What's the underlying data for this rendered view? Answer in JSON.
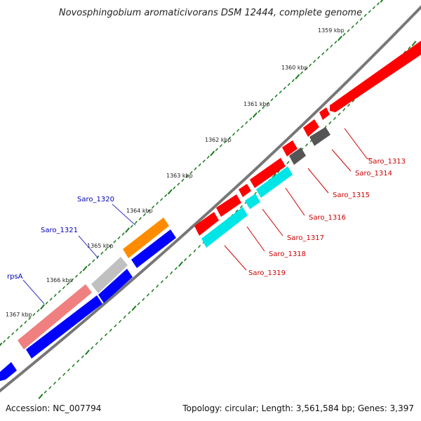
{
  "title": "Novosphingobium aromaticivorans DSM 12444, complete genome",
  "footer": {
    "accession": "Accession: NC_007794",
    "summary": "Topology: circular; Length: 3,561,584 bp; Genes: 3,397"
  },
  "colors": {
    "backbone": "#777777",
    "ruler": "#1a7a1a",
    "label_forward": "#cc0000",
    "label_reverse": "#0000bb",
    "leader": "#3333cc",
    "leader_forward": "#cc0000"
  },
  "ruler_labels": [
    "1359 kbp",
    "1360 kbp",
    "1361 kbp",
    "1362 kbp",
    "1363 kbp",
    "1364 kbp",
    "1365 kbp",
    "1366 kbp",
    "1367 kbp"
  ],
  "features": [
    {
      "name": "Saro_1313",
      "color": "#ff0000",
      "strand": "+"
    },
    {
      "name": "Saro_1314",
      "color": "#ff0000",
      "strand": "+"
    },
    {
      "name": "Saro_1315",
      "color": "#555555",
      "strand": "+"
    },
    {
      "name": "Saro_1316",
      "color": "#ff0000",
      "strand": "+"
    },
    {
      "name": "Saro_1317",
      "color": "#555555",
      "strand": "+"
    },
    {
      "name": "Saro_1318",
      "color": "#ff0000",
      "strand": "+"
    },
    {
      "name": "Saro_1319",
      "color": "#00e5e5",
      "strand": "+"
    },
    {
      "name": "Saro_1320",
      "color": "#ff8c00",
      "strand": "-"
    },
    {
      "name": "Saro_1321",
      "color": "#c0c0c0",
      "strand": "-"
    },
    {
      "name": "rpsA",
      "color": "#f08080",
      "strand": "-"
    }
  ]
}
